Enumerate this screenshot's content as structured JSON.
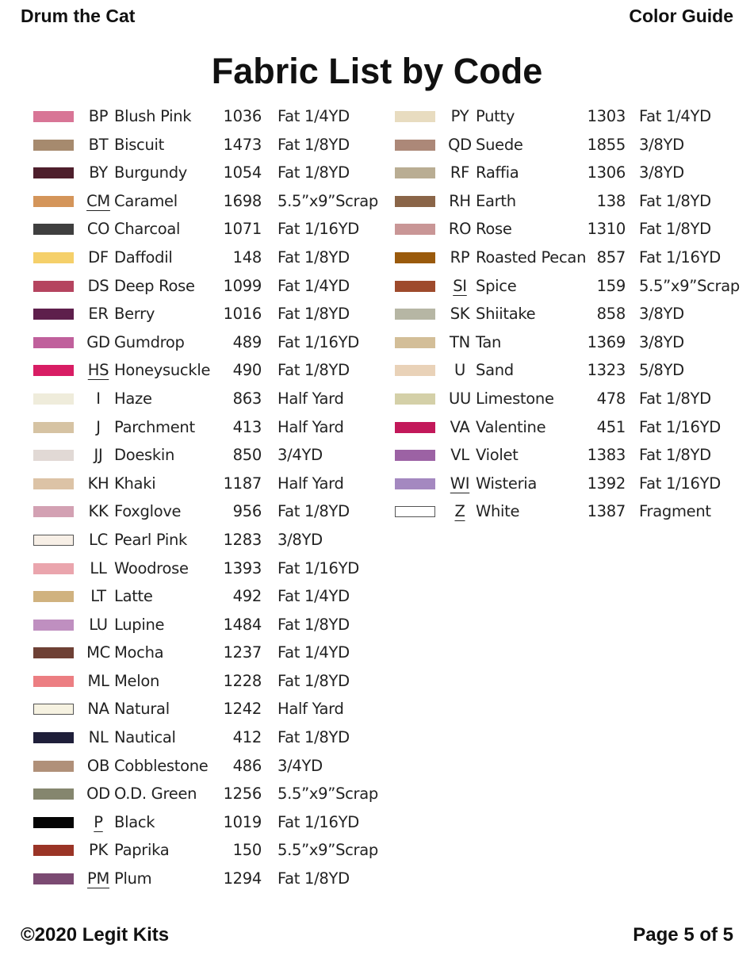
{
  "header": {
    "left": "Drum the Cat",
    "right": "Color Guide"
  },
  "title": "Fabric List by Code",
  "footer": {
    "left": "©2020 Legit Kits",
    "right": "Page 5 of 5"
  },
  "columns": [
    [
      {
        "code": "BP",
        "name": "Blush Pink",
        "number": "1036",
        "amount": "Fat 1/4YD",
        "color": "#d87596"
      },
      {
        "code": "BT",
        "name": "Biscuit",
        "number": "1473",
        "amount": "Fat 1/8YD",
        "color": "#a68a6e"
      },
      {
        "code": "BY",
        "name": "Burgundy",
        "number": "1054",
        "amount": "Fat 1/8YD",
        "color": "#4e1f2c"
      },
      {
        "code": "CM",
        "name": "Caramel",
        "number": "1698",
        "amount": "5.5”x9”Scrap",
        "color": "#d4955a",
        "underline": true
      },
      {
        "code": "CO",
        "name": "Charcoal",
        "number": "1071",
        "amount": "Fat 1/16YD",
        "color": "#3f3f3f"
      },
      {
        "code": "DF",
        "name": "Daffodil",
        "number": "148",
        "amount": "Fat 1/8YD",
        "color": "#f5d06a"
      },
      {
        "code": "DS",
        "name": "Deep Rose",
        "number": "1099",
        "amount": "Fat 1/4YD",
        "color": "#b5445f"
      },
      {
        "code": "ER",
        "name": "Berry",
        "number": "1016",
        "amount": "Fat 1/8YD",
        "color": "#5e1f4c"
      },
      {
        "code": "GD",
        "name": "Gumdrop",
        "number": "489",
        "amount": "Fat 1/16YD",
        "color": "#c0609c"
      },
      {
        "code": "HS",
        "name": "Honeysuckle",
        "number": "490",
        "amount": "Fat 1/8YD",
        "color": "#d81d64",
        "underline": true
      },
      {
        "code": "I",
        "name": "Haze",
        "number": "863",
        "amount": "Half Yard",
        "color": "#efecdb"
      },
      {
        "code": "J",
        "name": "Parchment",
        "number": "413",
        "amount": "Half Yard",
        "color": "#d6c3a3"
      },
      {
        "code": "JJ",
        "name": "Doeskin",
        "number": "850",
        "amount": "3/4YD",
        "color": "#e1d9d5"
      },
      {
        "code": "KH",
        "name": "Khaki",
        "number": "1187",
        "amount": "Half Yard",
        "color": "#dcc3a6"
      },
      {
        "code": "KK",
        "name": "Foxglove",
        "number": "956",
        "amount": "Fat 1/8YD",
        "color": "#d3a1b3"
      },
      {
        "code": "LC",
        "name": "Pearl Pink",
        "number": "1283",
        "amount": "3/8YD",
        "color": "#f7efe6",
        "outline": true
      },
      {
        "code": "LL",
        "name": "Woodrose",
        "number": "1393",
        "amount": "Fat 1/16YD",
        "color": "#eaa5ad"
      },
      {
        "code": "LT",
        "name": "Latte",
        "number": "492",
        "amount": "Fat 1/4YD",
        "color": "#d0b27f"
      },
      {
        "code": "LU",
        "name": "Lupine",
        "number": "1484",
        "amount": "Fat 1/8YD",
        "color": "#bf8fc0"
      },
      {
        "code": "MC",
        "name": "Mocha",
        "number": "1237",
        "amount": "Fat 1/4YD",
        "color": "#6e4035"
      },
      {
        "code": "ML",
        "name": "Melon",
        "number": "1228",
        "amount": "Fat 1/8YD",
        "color": "#ec7e82"
      },
      {
        "code": "NA",
        "name": "Natural",
        "number": "1242",
        "amount": "Half Yard",
        "color": "#f6f2e1",
        "outline": true
      },
      {
        "code": "NL",
        "name": "Nautical",
        "number": "412",
        "amount": "Fat 1/8YD",
        "color": "#1f1f3a"
      },
      {
        "code": "OB",
        "name": "Cobblestone",
        "number": "486",
        "amount": "3/4YD",
        "color": "#b09079"
      },
      {
        "code": "OD",
        "name": "O.D. Green",
        "number": "1256",
        "amount": "5.5”x9”Scrap",
        "color": "#85866e"
      },
      {
        "code": "P",
        "name": "Black",
        "number": "1019",
        "amount": "Fat 1/16YD",
        "color": "#050505",
        "underline": true
      },
      {
        "code": "PK",
        "name": "Paprika",
        "number": "150",
        "amount": "5.5”x9”Scrap",
        "color": "#9a3426"
      },
      {
        "code": "PM",
        "name": "Plum",
        "number": "1294",
        "amount": "Fat 1/8YD",
        "color": "#7b4a72",
        "underline": true
      }
    ],
    [
      {
        "code": "PY",
        "name": "Putty",
        "number": "1303",
        "amount": "Fat 1/4YD",
        "color": "#e8dcc0"
      },
      {
        "code": "QD",
        "name": "Suede",
        "number": "1855",
        "amount": "3/8YD",
        "color": "#ac8878"
      },
      {
        "code": "RF",
        "name": "Raffia",
        "number": "1306",
        "amount": "3/8YD",
        "color": "#b9ad93"
      },
      {
        "code": "RH",
        "name": "Earth",
        "number": "138",
        "amount": "Fat 1/8YD",
        "color": "#8a6548"
      },
      {
        "code": "RO",
        "name": "Rose",
        "number": "1310",
        "amount": "Fat 1/8YD",
        "color": "#c99696"
      },
      {
        "code": "RP",
        "name": "Roasted Pecan",
        "number": "857",
        "amount": "Fat 1/16YD",
        "color": "#9a5a0c"
      },
      {
        "code": "SI",
        "name": "Spice",
        "number": "159",
        "amount": "5.5”x9”Scrap",
        "color": "#9e4a2c",
        "underline": true
      },
      {
        "code": "SK",
        "name": "Shiitake",
        "number": "858",
        "amount": "3/8YD",
        "color": "#b6b6a4"
      },
      {
        "code": "TN",
        "name": "Tan",
        "number": "1369",
        "amount": "3/8YD",
        "color": "#d3be98"
      },
      {
        "code": "U",
        "name": "Sand",
        "number": "1323",
        "amount": "5/8YD",
        "color": "#e9d2b8"
      },
      {
        "code": "UU",
        "name": "Limestone",
        "number": "478",
        "amount": "Fat 1/8YD",
        "color": "#d4d0a8"
      },
      {
        "code": "VA",
        "name": "Valentine",
        "number": "451",
        "amount": "Fat 1/16YD",
        "color": "#c2185a"
      },
      {
        "code": "VL",
        "name": "Violet",
        "number": "1383",
        "amount": "Fat 1/8YD",
        "color": "#9c62a4"
      },
      {
        "code": "WI",
        "name": "Wisteria",
        "number": "1392",
        "amount": "Fat 1/16YD",
        "color": "#a488c0",
        "underline": true
      },
      {
        "code": "Z",
        "name": "White",
        "number": "1387",
        "amount": "Fragment",
        "color": "#ffffff",
        "outline": true,
        "underline": true
      }
    ]
  ]
}
